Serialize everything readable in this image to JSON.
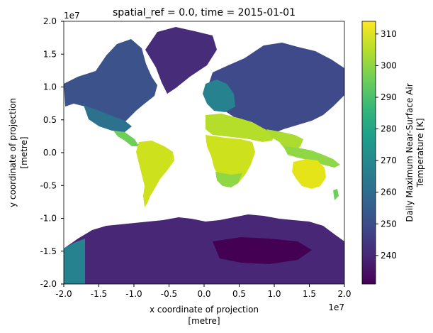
{
  "chart_data": {
    "type": "heatmap",
    "title": "spatial_ref = 0.0, time = 2015-01-01",
    "xlabel_line1": "x coordinate of projection",
    "xlabel_line2": "[metre]",
    "ylabel_line1": "y coordinate of projection",
    "ylabel_line2": "[metre]",
    "x_offset_label": "1e7",
    "y_offset_label": "1e7",
    "xlim": [
      -2.0,
      2.0
    ],
    "ylim": [
      -2.0,
      2.0
    ],
    "xticks": [
      "-2.0",
      "-1.5",
      "-1.0",
      "-0.5",
      "0.0",
      "0.5",
      "1.0",
      "1.5",
      "2.0"
    ],
    "yticks": [
      "2.0",
      "1.5",
      "1.0",
      "0.5",
      "0.0",
      "-0.5",
      "-1.0",
      "-1.5",
      "-2.0"
    ],
    "colorbar": {
      "label_line1": "Daily Maximum Near-Surface Air",
      "label_line2": "Temperature [K]",
      "vmin": 231,
      "vmax": 314,
      "ticks": [
        "240",
        "250",
        "260",
        "270",
        "280",
        "290",
        "300",
        "310"
      ],
      "colormap": "viridis"
    },
    "colors": {
      "viridis": [
        "#440154",
        "#482777",
        "#3e4a89",
        "#31688e",
        "#26828e",
        "#1f9e89",
        "#35b779",
        "#6ece58",
        "#b5de2b",
        "#fde725"
      ],
      "ocean": "#ffffff"
    }
  }
}
